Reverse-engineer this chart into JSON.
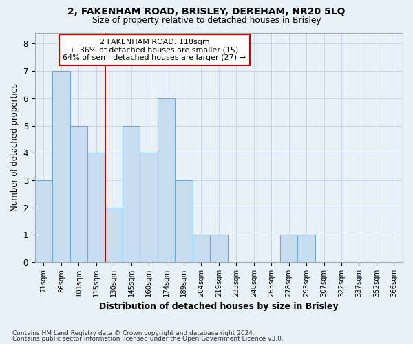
{
  "title1": "2, FAKENHAM ROAD, BRISLEY, DEREHAM, NR20 5LQ",
  "title2": "Size of property relative to detached houses in Brisley",
  "xlabel": "Distribution of detached houses by size in Brisley",
  "ylabel": "Number of detached properties",
  "categories": [
    "71sqm",
    "86sqm",
    "101sqm",
    "115sqm",
    "130sqm",
    "145sqm",
    "160sqm",
    "174sqm",
    "189sqm",
    "204sqm",
    "219sqm",
    "233sqm",
    "248sqm",
    "263sqm",
    "278sqm",
    "293sqm",
    "307sqm",
    "322sqm",
    "337sqm",
    "352sqm",
    "366sqm"
  ],
  "values": [
    3,
    7,
    5,
    4,
    2,
    5,
    4,
    6,
    3,
    1,
    1,
    0,
    0,
    0,
    1,
    1,
    0,
    0,
    0,
    0,
    0
  ],
  "bar_color": "#c8ddf0",
  "bar_edge_color": "#6aaad4",
  "grid_color": "#c8d8ec",
  "background_color": "#e8f0f8",
  "vline_x": 3.5,
  "vline_color": "#cc0000",
  "annotation_line1": "2 FAKENHAM ROAD: 118sqm",
  "annotation_line2": "← 36% of detached houses are smaller (15)",
  "annotation_line3": "64% of semi-detached houses are larger (27) →",
  "annotation_box_color": "#ffffff",
  "annotation_box_edge_color": "#cc0000",
  "ylim": [
    0,
    8.4
  ],
  "yticks": [
    0,
    1,
    2,
    3,
    4,
    5,
    6,
    7,
    8
  ],
  "footer1": "Contains HM Land Registry data © Crown copyright and database right 2024.",
  "footer2": "Contains public sector information licensed under the Open Government Licence v3.0."
}
